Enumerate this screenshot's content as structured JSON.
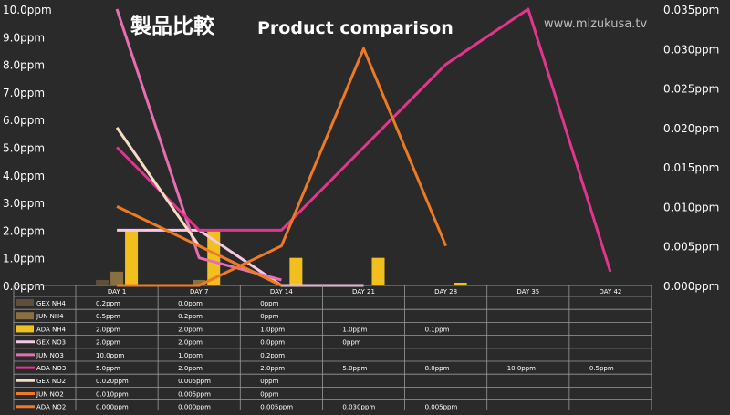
{
  "title_jp": "製品比較",
  "title_en": "Product comparison",
  "watermark": "www.mizukusa.tv",
  "chart_data": {
    "type": "bar",
    "categories": [
      "DAY 1",
      "DAY 7",
      "DAY 14",
      "DAY 21",
      "DAY 28",
      "DAY 35",
      "DAY 42"
    ],
    "y_left": {
      "min": 0,
      "max": 10,
      "step": 1,
      "tick_labels": [
        "0.0ppm",
        "1.0ppm",
        "2.0ppm",
        "3.0ppm",
        "4.0ppm",
        "5.0ppm",
        "6.0ppm",
        "7.0ppm",
        "8.0ppm",
        "9.0ppm",
        "10.0ppm"
      ]
    },
    "y_right": {
      "min": 0,
      "max": 0.035,
      "step": 0.005,
      "tick_labels": [
        "0.000ppm",
        "0.005ppm",
        "0.010ppm",
        "0.015ppm",
        "0.020ppm",
        "0.025ppm",
        "0.030ppm",
        "0.035ppm"
      ]
    },
    "series": [
      {
        "name": "GEX NH4",
        "kind": "bar",
        "axis": "left",
        "color": "#5e4f3c",
        "values": [
          0.2,
          0.0,
          0,
          null,
          null,
          null,
          null
        ],
        "labels": [
          "0.2ppm",
          "0.0ppm",
          "0ppm",
          "",
          "",
          "",
          ""
        ]
      },
      {
        "name": "JUN NH4",
        "kind": "bar",
        "axis": "left",
        "color": "#8a7040",
        "values": [
          0.5,
          0.2,
          0,
          null,
          null,
          null,
          null
        ],
        "labels": [
          "0.5ppm",
          "0.2ppm",
          "0ppm",
          "",
          "",
          "",
          ""
        ]
      },
      {
        "name": "ADA NH4",
        "kind": "bar",
        "axis": "left",
        "color": "#f2c01e",
        "values": [
          2.0,
          2.0,
          1.0,
          1.0,
          0.1,
          null,
          null
        ],
        "labels": [
          "2.0ppm",
          "2.0ppm",
          "1.0ppm",
          "1.0ppm",
          "0.1ppm",
          "",
          ""
        ]
      },
      {
        "name": "GEX NO3",
        "kind": "line",
        "axis": "left",
        "color": "#f6c8e4",
        "values": [
          2.0,
          2.0,
          0.0,
          0,
          null,
          null,
          null
        ],
        "labels": [
          "2.0ppm",
          "2.0ppm",
          "0.0ppm",
          "0ppm",
          "",
          "",
          ""
        ]
      },
      {
        "name": "JUN NO3",
        "kind": "line",
        "axis": "left",
        "color": "#e66fb4",
        "values": [
          10.0,
          1.0,
          0.2,
          null,
          null,
          null,
          null
        ],
        "labels": [
          "10.0ppm",
          "1.0ppm",
          "0.2ppm",
          "",
          "",
          "",
          ""
        ]
      },
      {
        "name": "ADA NO3",
        "kind": "line",
        "axis": "left",
        "color": "#e3348f",
        "values": [
          5.0,
          2.0,
          2.0,
          5.0,
          8.0,
          10.0,
          0.5
        ],
        "labels": [
          "5.0ppm",
          "2.0ppm",
          "2.0ppm",
          "5.0ppm",
          "8.0ppm",
          "10.0ppm",
          "0.5ppm"
        ]
      },
      {
        "name": "GEX NO2",
        "kind": "line",
        "axis": "right",
        "color": "#f7dcc3",
        "values": [
          0.02,
          0.005,
          0,
          null,
          null,
          null,
          null
        ],
        "labels": [
          "0.020ppm",
          "0.005ppm",
          "0ppm",
          "",
          "",
          "",
          ""
        ]
      },
      {
        "name": "JUN NO2",
        "kind": "line",
        "axis": "right",
        "color": "#ee7a22",
        "values": [
          0.01,
          0.005,
          0,
          null,
          null,
          null,
          null
        ],
        "labels": [
          "0.010ppm",
          "0.005ppm",
          "0ppm",
          "",
          "",
          "",
          ""
        ]
      },
      {
        "name": "ADA NO2",
        "kind": "line",
        "axis": "right",
        "color": "#ee7a22",
        "values": [
          0.0,
          0.0,
          0.005,
          0.03,
          0.005,
          null,
          null
        ],
        "labels": [
          "0.000ppm",
          "0.000ppm",
          "0.005ppm",
          "0.030ppm",
          "0.005ppm",
          "",
          ""
        ]
      }
    ],
    "grid": false,
    "legend": "data-table-below"
  }
}
